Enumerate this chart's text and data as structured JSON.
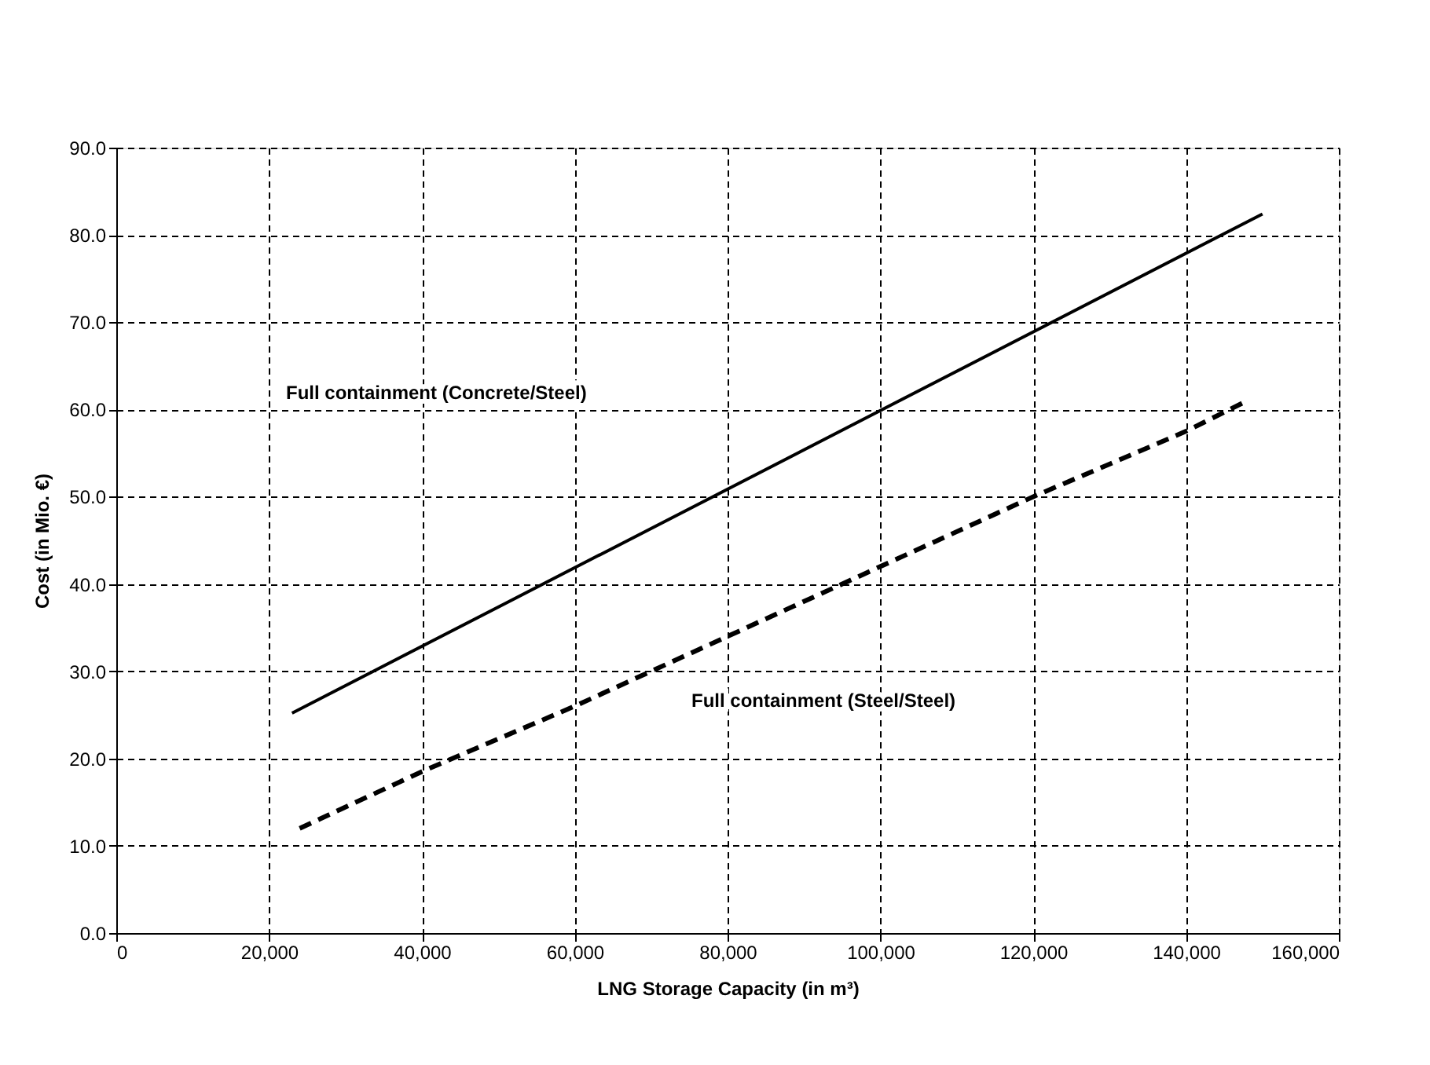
{
  "chart_data": {
    "type": "line",
    "xlabel": "LNG Storage Capacity (in m³)",
    "ylabel": "Cost (in Mio. €)",
    "xlim": [
      0,
      160000
    ],
    "xticks": [
      0,
      {
        "value": 20000,
        "label": "20,000"
      },
      {
        "value": 40000,
        "label": "40,000"
      },
      {
        "value": 60000,
        "label": "60,000"
      },
      {
        "value": 80000,
        "label": "80,000"
      },
      {
        "value": 100000,
        "label": "100,000"
      },
      {
        "value": 120000,
        "label": "120,000"
      },
      {
        "value": 140000,
        "label": "140,000"
      },
      {
        "value": 160000,
        "label": "160,000"
      }
    ],
    "ylim": [
      0,
      90
    ],
    "yticks": [
      {
        "value": 0,
        "label": "0.0"
      },
      {
        "value": 10,
        "label": "10.0"
      },
      {
        "value": 20,
        "label": "20.0"
      },
      {
        "value": 30,
        "label": "30.0"
      },
      {
        "value": 40,
        "label": "40.0"
      },
      {
        "value": 50,
        "label": "50.0"
      },
      {
        "value": 60,
        "label": "60.0"
      },
      {
        "value": 70,
        "label": "70.0"
      },
      {
        "value": 80,
        "label": "80.0"
      },
      {
        "value": 90,
        "label": "90.0"
      }
    ],
    "grid": true,
    "marker": "none",
    "series": [
      {
        "color": "#000000",
        "line_style": "solid",
        "x": [
          23000,
          150000
        ],
        "values": [
          25.2,
          82.4
        ]
      },
      {
        "color": "#000000",
        "line_style": "dashed",
        "x": [
          24000,
          40000,
          60000,
          80000,
          100000,
          120000,
          140000,
          148000
        ],
        "values": [
          12.0,
          18.5,
          26.0,
          34.0,
          42.0,
          50.0,
          57.5,
          61.0
        ]
      }
    ],
    "annotations": [
      "Full containment (Concrete/Steel)",
      "Full containment (Steel/Steel)"
    ]
  }
}
